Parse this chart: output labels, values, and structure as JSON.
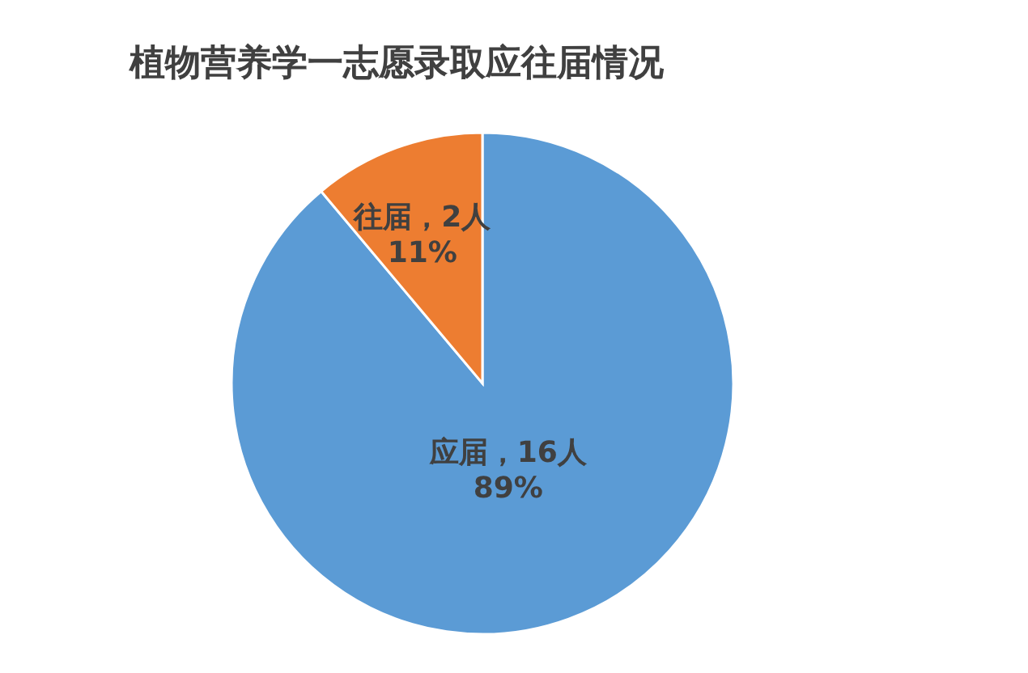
{
  "chart_data": {
    "type": "pie",
    "title": "植物营养学一志愿录取应往届情况",
    "categories": [
      "应届",
      "往届"
    ],
    "values": [
      16,
      2
    ],
    "colors": [
      "#5b9bd5",
      "#ed7d31"
    ],
    "value_labels": [
      "16人\n89%",
      "2人\n11%"
    ]
  }
}
